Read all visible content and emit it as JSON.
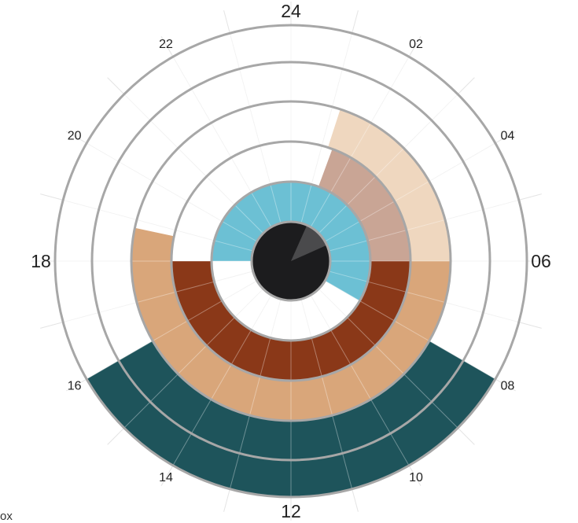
{
  "corner_text": "ox",
  "chart_data": {
    "type": "radial-clock",
    "hour_labels": [
      {
        "hour": 0,
        "label": "24",
        "major": true
      },
      {
        "hour": 2,
        "label": "02",
        "major": false
      },
      {
        "hour": 4,
        "label": "04",
        "major": false
      },
      {
        "hour": 6,
        "label": "06",
        "major": true
      },
      {
        "hour": 8,
        "label": "08",
        "major": false
      },
      {
        "hour": 10,
        "label": "10",
        "major": false
      },
      {
        "hour": 12,
        "label": "12",
        "major": true
      },
      {
        "hour": 14,
        "label": "14",
        "major": false
      },
      {
        "hour": 16,
        "label": "16",
        "major": false
      },
      {
        "hour": 18,
        "label": "18",
        "major": true
      },
      {
        "hour": 20,
        "label": "20",
        "major": false
      },
      {
        "hour": 22,
        "label": "22",
        "major": false
      }
    ],
    "ring_count": 5,
    "segments": [
      {
        "ring": 0,
        "start_hour": 0,
        "end_hour": 24,
        "color": "#1c1c1e"
      },
      {
        "ring": 0,
        "start_hour": 1.6,
        "end_hour": 4.4,
        "color": "#4a4a4c"
      },
      {
        "ring": 1,
        "start_hour": 18,
        "end_hour": 8,
        "color": "#6cc0d4"
      },
      {
        "ring": 2,
        "start_hour": 1.35,
        "end_hour": 6,
        "color": "#c9a595"
      },
      {
        "ring": 2,
        "start_hour": 6,
        "end_hour": 18,
        "color": "#8a3818"
      },
      {
        "ring": 3,
        "start_hour": 1.2,
        "end_hour": 7,
        "color": "#efd7bf"
      },
      {
        "ring": 3,
        "start_hour": 6,
        "end_hour": 18.8,
        "color": "#d9a67a"
      },
      {
        "ring": 4,
        "start_hour": 8,
        "end_hour": 16,
        "color": "#1e545b"
      }
    ]
  }
}
